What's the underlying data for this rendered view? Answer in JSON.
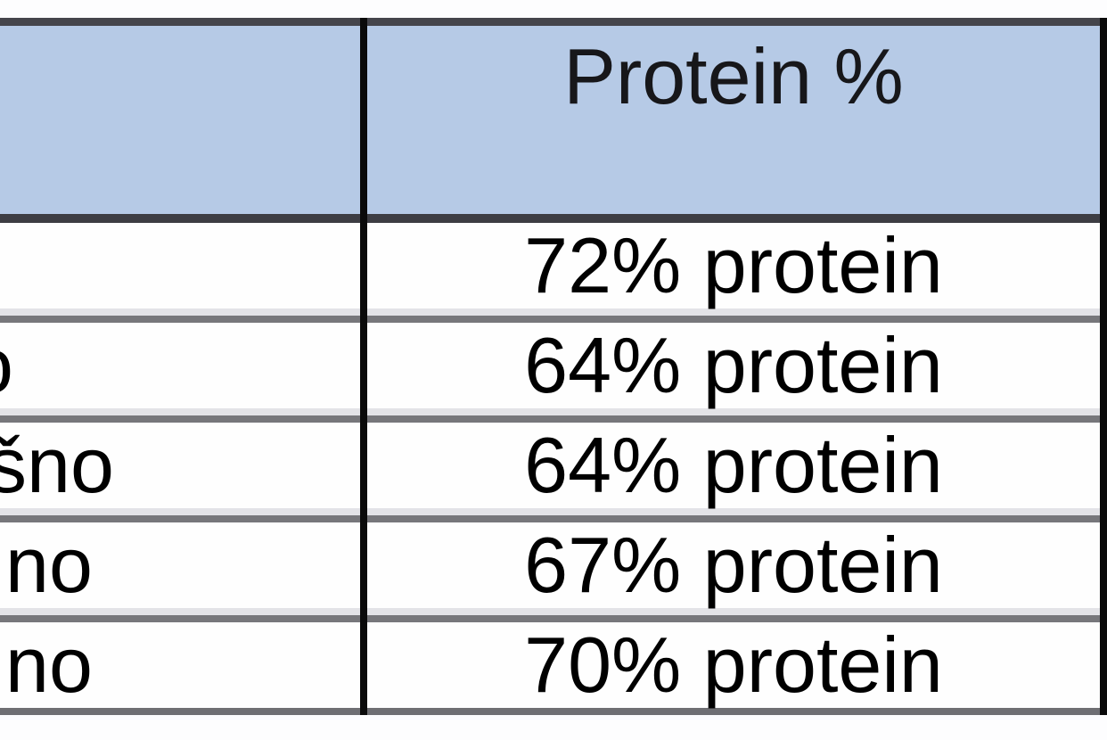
{
  "header": {
    "left_label": "",
    "right_label": "Protein %"
  },
  "rows": [
    {
      "left": "",
      "right": "72% protein"
    },
    {
      "left": "o",
      "right": "64% protein"
    },
    {
      "left": "šno",
      "right": "64% protein"
    },
    {
      "left": "no",
      "right": "67% protein"
    },
    {
      "left": "no",
      "right": "70% protein"
    }
  ],
  "colors": {
    "header_bg": "#b6cae6",
    "header_text": "#17171a",
    "text": "#000000",
    "grid_black": "#0a0a0a",
    "grid_dark": "#45454b",
    "grid_dark2": "#3d3d43",
    "grid_gray": "#77777b",
    "grid_gray2": "#6f6f73",
    "grid_light": "#e3e3e7"
  }
}
